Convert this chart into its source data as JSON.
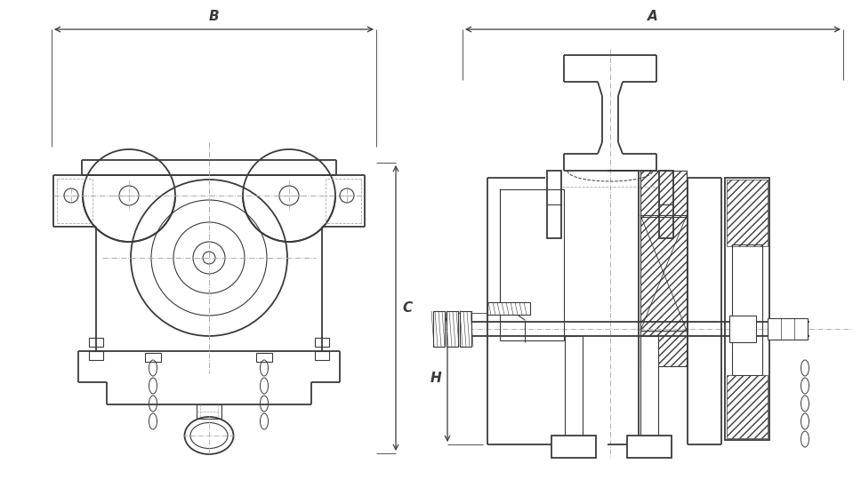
{
  "bg": "#ffffff",
  "lc": "#3a3a3a",
  "dc": "#3a3a3a",
  "cc": "#aaaaaa",
  "label_B": "B",
  "label_A": "A",
  "label_C": "C",
  "label_H": "H",
  "lw_n": 0.8,
  "lw_t": 1.3
}
